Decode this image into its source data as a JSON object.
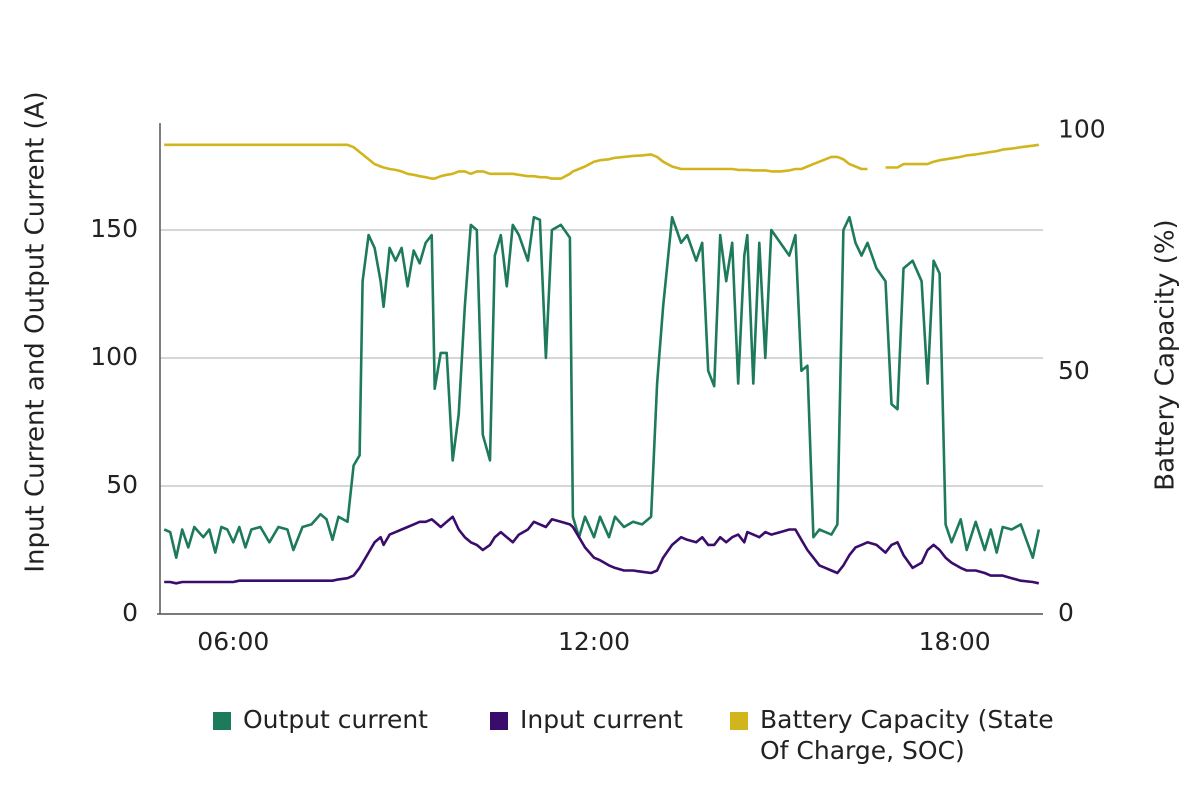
{
  "chart_data": {
    "type": "line",
    "y_label": "Input Current and Output Current (A)",
    "y2_label": "Battery Capacity (%)",
    "x": [
      4.85,
      4.95,
      5.05,
      5.15,
      5.25,
      5.35,
      5.5,
      5.6,
      5.7,
      5.8,
      5.9,
      6.0,
      6.1,
      6.2,
      6.3,
      6.45,
      6.6,
      6.75,
      6.9,
      7.0,
      7.15,
      7.3,
      7.45,
      7.55,
      7.65,
      7.75,
      7.9,
      8.0,
      8.1,
      8.15,
      8.25,
      8.35,
      8.45,
      8.5,
      8.6,
      8.7,
      8.8,
      8.9,
      9.0,
      9.1,
      9.2,
      9.3,
      9.35,
      9.45,
      9.55,
      9.65,
      9.75,
      9.85,
      9.95,
      10.05,
      10.15,
      10.27,
      10.35,
      10.45,
      10.55,
      10.65,
      10.75,
      10.9,
      11.0,
      11.1,
      11.2,
      11.3,
      11.45,
      11.6,
      11.65,
      11.75,
      11.85,
      12.0,
      12.1,
      12.25,
      12.35,
      12.5,
      12.65,
      12.8,
      12.95,
      13.05,
      13.15,
      13.3,
      13.45,
      13.55,
      13.7,
      13.8,
      13.9,
      14.0,
      14.1,
      14.2,
      14.3,
      14.4,
      14.5,
      14.55,
      14.65,
      14.75,
      14.85,
      14.95,
      15.1,
      15.25,
      15.35,
      15.45,
      15.55,
      15.65,
      15.75,
      15.85,
      15.95,
      16.05,
      16.15,
      16.25,
      16.35,
      16.45,
      16.55,
      16.7,
      16.85,
      16.95,
      17.05,
      17.15,
      17.3,
      17.45,
      17.55,
      17.65,
      17.75,
      17.85,
      17.95,
      18.1,
      18.2,
      18.35,
      18.5,
      18.6,
      18.7,
      18.8,
      18.95,
      19.1,
      19.3,
      19.4
    ],
    "series": [
      {
        "name": "Output current",
        "color": "#1e7a5c",
        "axis": "y",
        "values": [
          33,
          32,
          22,
          33,
          26,
          34,
          30,
          33,
          24,
          34,
          33,
          28,
          34,
          26,
          33,
          34,
          28,
          34,
          33,
          25,
          34,
          35,
          39,
          37,
          29,
          38,
          36,
          58,
          62,
          130,
          148,
          143,
          130,
          120,
          143,
          138,
          143,
          128,
          142,
          137,
          145,
          148,
          88,
          102,
          102,
          60,
          78,
          120,
          152,
          150,
          70,
          60,
          140,
          148,
          128,
          152,
          148,
          138,
          155,
          154,
          100,
          150,
          152,
          147,
          38,
          30,
          38,
          30,
          38,
          30,
          38,
          34,
          36,
          35,
          38,
          90,
          120,
          155,
          145,
          148,
          138,
          145,
          95,
          89,
          148,
          130,
          145,
          90,
          140,
          148,
          90,
          145,
          100,
          150,
          145,
          140,
          148,
          95,
          97,
          30,
          33,
          32,
          31,
          35,
          150,
          155,
          145,
          140,
          145,
          135,
          130,
          82,
          80,
          135,
          138,
          130,
          90,
          138,
          133,
          35,
          28,
          37,
          25,
          36,
          25,
          33,
          24,
          34,
          33,
          35,
          22,
          33
        ]
      },
      {
        "name": "Input current",
        "color": "#3a0c6b",
        "axis": "y",
        "values": [
          12.5,
          12.5,
          12,
          12.5,
          12.5,
          12.5,
          12.5,
          12.5,
          12.5,
          12.5,
          12.5,
          12.5,
          13,
          13,
          13,
          13,
          13,
          13,
          13,
          13,
          13,
          13,
          13,
          13,
          13,
          13.5,
          14,
          15,
          18,
          20,
          24,
          28,
          30,
          27,
          31,
          32,
          33,
          34,
          35,
          36,
          36,
          37,
          36,
          34,
          36,
          38,
          33,
          30,
          28,
          27,
          25,
          27,
          30,
          32,
          30,
          28,
          31,
          33,
          36,
          35,
          34,
          37,
          36,
          35,
          34,
          30,
          26,
          22,
          21,
          19,
          18,
          17,
          17,
          16.5,
          16,
          17,
          22,
          27,
          30,
          29,
          28,
          30,
          27,
          27,
          30,
          28,
          30,
          31,
          28,
          32,
          31,
          30,
          32,
          31,
          32,
          33,
          33,
          29,
          25,
          22,
          19,
          18,
          17,
          16,
          19,
          23,
          26,
          27,
          28,
          27,
          24,
          27,
          28,
          23,
          18,
          20,
          25,
          27,
          25,
          22,
          20,
          18,
          17,
          17,
          16,
          15,
          15,
          15,
          14,
          13,
          12.5,
          12
        ]
      },
      {
        "name": "Battery Capacity (State Of Charge, SOC)",
        "color": "#d2b51c",
        "axis": "y2",
        "values": [
          97,
          97,
          97,
          97,
          97,
          97,
          97,
          97,
          97,
          97,
          97,
          97,
          97,
          97,
          97,
          97,
          97,
          97,
          97,
          97,
          97,
          97,
          97,
          97,
          97,
          97,
          97,
          96.5,
          95.5,
          95,
          94,
          93,
          92.5,
          92.3,
          92,
          91.8,
          91.5,
          91,
          90.8,
          90.5,
          90.3,
          90,
          90,
          90.5,
          90.8,
          91,
          91.5,
          91.5,
          91,
          91.5,
          91.5,
          91,
          91,
          91,
          91,
          91,
          90.8,
          90.5,
          90.5,
          90.3,
          90.3,
          90,
          90,
          91,
          91.5,
          92,
          92.5,
          93.5,
          93.8,
          94,
          94.3,
          94.5,
          94.7,
          94.8,
          95,
          94.5,
          93.5,
          92.5,
          92,
          92,
          92,
          92,
          92,
          92,
          92,
          92,
          92,
          91.8,
          91.8,
          91.8,
          91.7,
          91.7,
          91.7,
          91.5,
          91.5,
          91.7,
          92,
          92,
          92.5,
          93,
          93.5,
          94,
          94.5,
          94.5,
          94,
          93,
          92.5,
          92,
          92,
          null,
          92.3,
          92.3,
          92.3,
          93,
          93,
          93,
          93,
          93.5,
          93.8,
          94,
          94.2,
          94.5,
          94.8,
          95,
          95.3,
          95.5,
          95.7,
          96,
          96.2,
          96.5,
          96.8,
          97
        ]
      }
    ],
    "xlim": [
      4.78,
      19.47
    ],
    "xticks": [
      {
        "value": 6,
        "label": "06:00"
      },
      {
        "value": 12,
        "label": "12:00"
      },
      {
        "value": 18,
        "label": "18:00"
      }
    ],
    "ylim": [
      0,
      191.8
    ],
    "yticks": [
      0,
      50,
      100,
      150
    ],
    "y2lim": [
      0,
      101.5
    ],
    "y2ticks": [
      0,
      50,
      100
    ],
    "grid": true,
    "legend": "bottom"
  }
}
